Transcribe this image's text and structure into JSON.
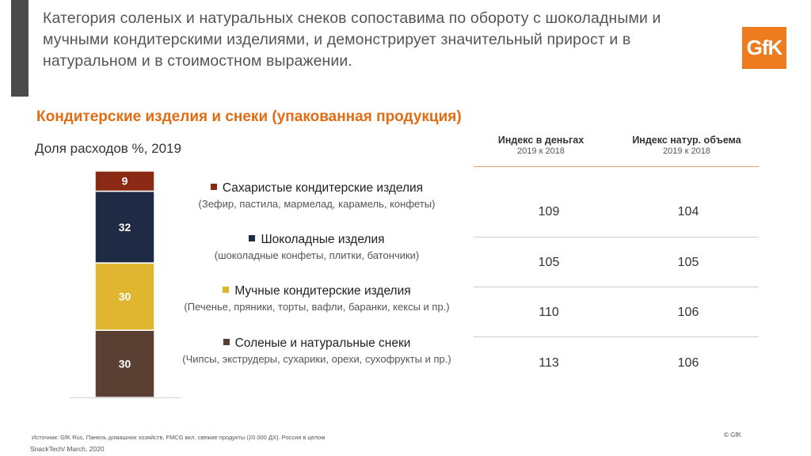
{
  "header": {
    "headline": "Категория соленых и натуральных снеков сопоставима по обороту с шоколадными и мучными кондитерскими изделиями, и демонстрирует значительный прирост и в натуральном и в стоимостном выражении.",
    "logo_text": "GfK"
  },
  "section_title": "Кондитерские изделия и снеки (упакованная продукция)",
  "chart_subtitle": "Доля расходов %, 2019",
  "chart_data": {
    "type": "bar",
    "stacked": true,
    "title": "Доля расходов %, 2019",
    "unit": "%",
    "series": [
      {
        "name": "Соленые и натуральные снеки",
        "value": 30,
        "color": "#5a3f33",
        "label_color": "#ffffff"
      },
      {
        "name": "Мучные кондитерские изделия",
        "value": 30,
        "color": "#e0b530",
        "label_color": "#ffffff"
      },
      {
        "name": "Шоколадные изделия",
        "value": 32,
        "color": "#1f2a44",
        "label_color": "#ffffff"
      },
      {
        "name": "Сахаристые кондитерские изделия",
        "value": 9,
        "color": "#8a2a14",
        "label_color": "#ffffff"
      }
    ]
  },
  "legend": [
    {
      "label": "Сахаристые кондитерские изделия",
      "desc": "(Зефир, пастила, мармелад, карамель, конфеты)",
      "color": "#8a2a14"
    },
    {
      "label": "Шоколадные изделия",
      "desc": "(шоколадные конфеты, плитки, батончики)",
      "color": "#1f2a44"
    },
    {
      "label": "Мучные кондитерские изделия",
      "desc": "(Печенье, пряники, торты, вафли, баранки, кексы и пр.)",
      "color": "#e0b530"
    },
    {
      "label": "Соленые и натуральные снеки",
      "desc": "(Чипсы, экструдеры, сухарики, орехи, сухофрукты и пр.)",
      "color": "#5a3f33"
    }
  ],
  "table": {
    "columns": [
      {
        "title": "Индекс в деньгах",
        "sub": "2019 к 2018"
      },
      {
        "title": "Индекс натур. объема",
        "sub": "2019 к 2018"
      }
    ],
    "rows": [
      [
        "109",
        "104"
      ],
      [
        "105",
        "105"
      ],
      [
        "110",
        "106"
      ],
      [
        "113",
        "106"
      ]
    ]
  },
  "footer": {
    "source": "Источник: GfK Rus, Панель домашних хозяйств, FMCG вкл. свежие продукты (20 000 ДХ). Россия в целом",
    "project": "SnackTech/ March, 2020",
    "copyright": "© GfK"
  }
}
